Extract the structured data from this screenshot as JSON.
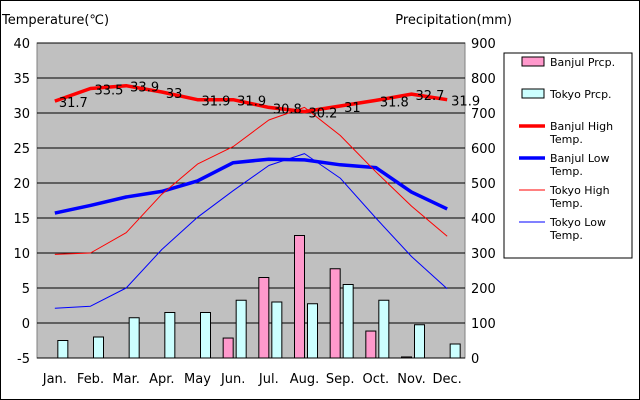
{
  "chart_data": {
    "type": "bar+line",
    "categories": [
      "Jan.",
      "Feb.",
      "Mar.",
      "Apr.",
      "May",
      "Jun.",
      "Jul.",
      "Aug.",
      "Sep.",
      "Oct.",
      "Nov.",
      "Dec."
    ],
    "left_axis": {
      "label": "Temperature(℃)",
      "range": [
        -5,
        40
      ],
      "ticks": [
        40,
        35,
        30,
        25,
        20,
        15,
        10,
        5,
        0,
        -5
      ]
    },
    "right_axis": {
      "label": "Precipitation(mm)",
      "range": [
        0,
        900
      ],
      "ticks": [
        900,
        800,
        700,
        600,
        500,
        400,
        300,
        200,
        100,
        0
      ]
    },
    "bar_series": [
      {
        "name": "Banjul Prcp.",
        "color": "#ff99cc",
        "axis": "right",
        "values": [
          0,
          0,
          0,
          0,
          0,
          57,
          230,
          350,
          255,
          77,
          3,
          0
        ]
      },
      {
        "name": "Tokyo Prcp.",
        "color": "#ccffff",
        "axis": "right",
        "values": [
          50,
          60,
          115,
          130,
          130,
          165,
          160,
          155,
          210,
          165,
          95,
          40
        ]
      }
    ],
    "line_series": [
      {
        "name": "Banjul High Temp.",
        "color": "#ff0000",
        "width": "thick",
        "axis": "left",
        "values": [
          31.7,
          33.5,
          33.9,
          33,
          31.9,
          31.9,
          30.8,
          30.2,
          31,
          31.8,
          32.7,
          31.9
        ]
      },
      {
        "name": "Banjul Low Temp.",
        "color": "#0000ff",
        "width": "thick",
        "axis": "left",
        "values": [
          15.7,
          16.8,
          18,
          18.8,
          20.3,
          22.9,
          23.4,
          23.3,
          22.6,
          22.2,
          18.7,
          16.3
        ]
      },
      {
        "name": "Tokyo High Temp.",
        "color": "#ff0000",
        "width": "thin",
        "axis": "left",
        "values": [
          9.8,
          10,
          12.9,
          18.4,
          22.7,
          25.2,
          29,
          30.8,
          26.8,
          21.6,
          16.7,
          12.4
        ]
      },
      {
        "name": "Tokyo Low Temp.",
        "color": "#0000ff",
        "width": "thin",
        "axis": "left",
        "values": [
          2.1,
          2.4,
          5,
          10.5,
          15.1,
          18.9,
          22.5,
          24.2,
          20.7,
          15,
          9.5,
          4.9
        ]
      }
    ],
    "data_labels": {
      "series": "Banjul High Temp.",
      "texts": [
        "31.7",
        "33.5",
        "33.9",
        "33",
        "31.9",
        "31.9",
        "30.8",
        "30.2",
        "31",
        "31.8",
        "32.7",
        "31.9"
      ]
    },
    "grid": true,
    "legend_position": "right"
  }
}
